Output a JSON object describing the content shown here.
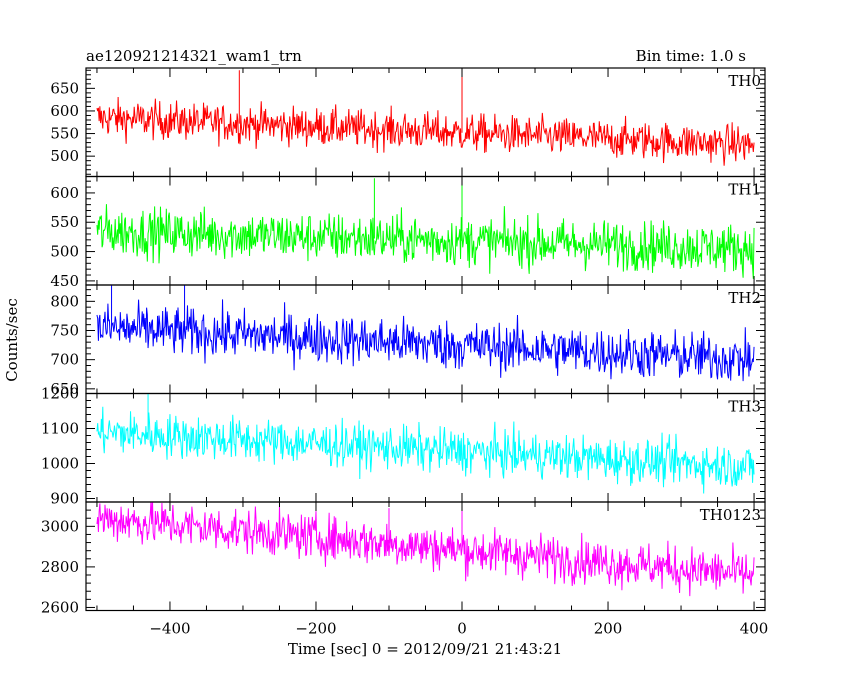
{
  "chart_data": {
    "type": "line",
    "title": "ae120921214321_wam1_trn",
    "bin_time": "Bin time: 1.0 s",
    "xlabel": "Time [sec] 0 = 2012/09/21 21:43:21",
    "ylabel": "Counts/sec",
    "xlim": [
      -515,
      415
    ],
    "x_ticks": [
      -400,
      -200,
      0,
      200,
      400
    ],
    "grid": false,
    "panels": [
      {
        "name": "TH0",
        "color": "#ff0000",
        "ylim": [
          455,
          695
        ],
        "y_ticks": [
          500,
          550,
          600,
          650
        ],
        "series": {
          "x_start": -500,
          "x_end": 400,
          "level_start": 585,
          "level_end": 525,
          "noise": 30
        },
        "spikes": [
          {
            "x": 0,
            "y": 695
          },
          {
            "x": -305,
            "y": 690
          }
        ]
      },
      {
        "name": "TH1",
        "color": "#00ff00",
        "ylim": [
          443,
          628
        ],
        "y_ticks": [
          450,
          500,
          550,
          600
        ],
        "series": {
          "x_start": -500,
          "x_end": 400,
          "level_start": 535,
          "level_end": 505,
          "noise": 30
        },
        "spikes": [
          {
            "x": 0,
            "y": 625
          },
          {
            "x": -120,
            "y": 625
          }
        ]
      },
      {
        "name": "TH2",
        "color": "#0000ff",
        "ylim": [
          642,
          828
        ],
        "y_ticks": [
          650,
          700,
          750,
          800
        ],
        "series": {
          "x_start": -500,
          "x_end": 400,
          "level_start": 755,
          "level_end": 700,
          "noise": 30
        },
        "spikes": [
          {
            "x": -480,
            "y": 828
          },
          {
            "x": -380,
            "y": 828
          }
        ]
      },
      {
        "name": "TH3",
        "color": "#00ffff",
        "ylim": [
          890,
          1200
        ],
        "y_ticks": [
          900,
          1000,
          1100,
          1200
        ],
        "series": {
          "x_start": -500,
          "x_end": 400,
          "level_start": 1090,
          "level_end": 990,
          "noise": 45
        },
        "spikes": [
          {
            "x": -430,
            "y": 1200
          }
        ]
      },
      {
        "name": "TH0123",
        "color": "#ff00ff",
        "ylim": [
          2585,
          3120
        ],
        "y_ticks": [
          2600,
          2800,
          3000
        ],
        "series": {
          "x_start": -500,
          "x_end": 400,
          "level_start": 3040,
          "level_end": 2760,
          "noise": 80
        },
        "spikes": [
          {
            "x": 0,
            "y": 3100
          },
          {
            "x": -100,
            "y": 3090
          }
        ]
      }
    ]
  }
}
